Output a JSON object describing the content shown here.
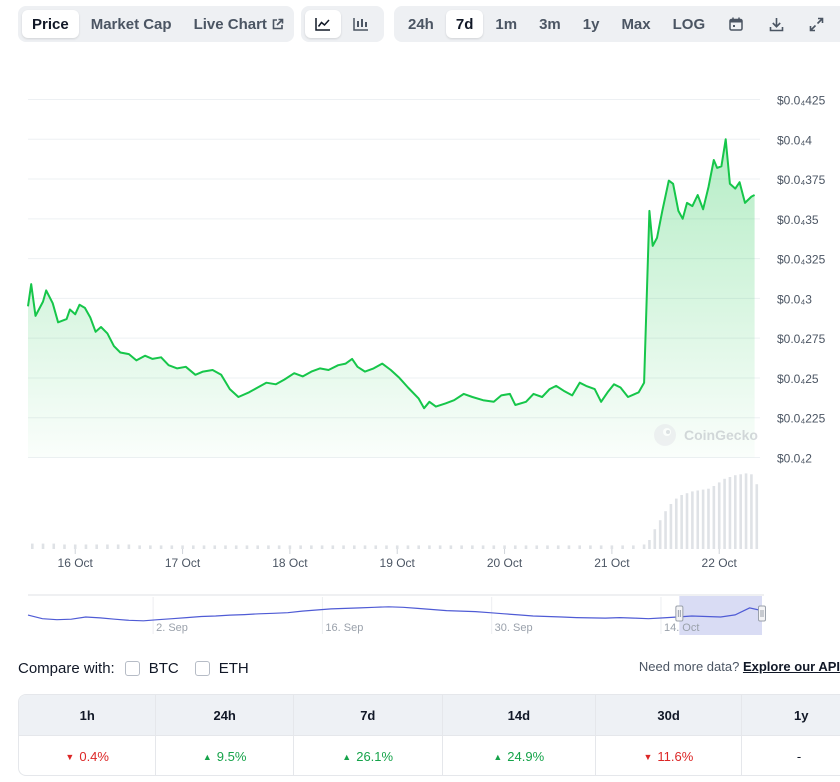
{
  "toolbar": {
    "tabs": [
      "Price",
      "Market Cap",
      "Live Chart"
    ],
    "active_tab": "Price",
    "chart_types": [
      "line-chart-icon",
      "candlestick-icon"
    ],
    "ranges": [
      "24h",
      "7d",
      "1m",
      "3m",
      "1y",
      "Max",
      "LOG"
    ],
    "active_range": "7d",
    "tools": [
      "calendar-icon",
      "download-icon",
      "expand-icon"
    ]
  },
  "colors": {
    "line": "#16c64a",
    "fill": "#16c64a",
    "grid": "#edf0f3",
    "volume": "#dfe2e6",
    "navigator_line": "#4f5bd5",
    "navigator_selection": "#c9cdf0"
  },
  "watermark": "CoinGecko",
  "chart_data": {
    "type": "area",
    "y_axis_labels": [
      "$0.0₄425",
      "$0.0₄4",
      "$0.0₄375",
      "$0.0₄35",
      "$0.0₄325",
      "$0.0₄3",
      "$0.0₄275",
      "$0.0₄25",
      "$0.0₄225",
      "$0.0₄2"
    ],
    "ylim": [
      2e-05,
      4.25e-05
    ],
    "x_tick_labels": [
      "16 Oct",
      "17 Oct",
      "18 Oct",
      "19 Oct",
      "20 Oct",
      "21 Oct",
      "22 Oct"
    ],
    "xlim": [
      15.56,
      22.38
    ],
    "grid": true,
    "price": [
      [
        15.56,
        2.95e-05
      ],
      [
        15.59,
        3.09e-05
      ],
      [
        15.63,
        2.89e-05
      ],
      [
        15.7,
        2.98e-05
      ],
      [
        15.73,
        3.05e-05
      ],
      [
        15.79,
        2.97e-05
      ],
      [
        15.84,
        2.85e-05
      ],
      [
        15.92,
        2.87e-05
      ],
      [
        15.95,
        2.93e-05
      ],
      [
        16.0,
        2.9e-05
      ],
      [
        16.04,
        2.96e-05
      ],
      [
        16.09,
        2.94e-05
      ],
      [
        16.14,
        2.88e-05
      ],
      [
        16.19,
        2.79e-05
      ],
      [
        16.24,
        2.82e-05
      ],
      [
        16.3,
        2.78e-05
      ],
      [
        16.36,
        2.7e-05
      ],
      [
        16.42,
        2.66e-05
      ],
      [
        16.5,
        2.65e-05
      ],
      [
        16.57,
        2.61e-05
      ],
      [
        16.65,
        2.64e-05
      ],
      [
        16.72,
        2.62e-05
      ],
      [
        16.8,
        2.63e-05
      ],
      [
        16.87,
        2.58e-05
      ],
      [
        16.95,
        2.56e-05
      ],
      [
        17.03,
        2.57e-05
      ],
      [
        17.12,
        2.52e-05
      ],
      [
        17.19,
        2.54e-05
      ],
      [
        17.28,
        2.55e-05
      ],
      [
        17.36,
        2.52e-05
      ],
      [
        17.44,
        2.43e-05
      ],
      [
        17.52,
        2.38e-05
      ],
      [
        17.62,
        2.41e-05
      ],
      [
        17.7,
        2.44e-05
      ],
      [
        17.78,
        2.47e-05
      ],
      [
        17.87,
        2.46e-05
      ],
      [
        17.95,
        2.49e-05
      ],
      [
        18.04,
        2.53e-05
      ],
      [
        18.12,
        2.51e-05
      ],
      [
        18.2,
        2.54e-05
      ],
      [
        18.28,
        2.56e-05
      ],
      [
        18.36,
        2.55e-05
      ],
      [
        18.45,
        2.58e-05
      ],
      [
        18.52,
        2.59e-05
      ],
      [
        18.58,
        2.62e-05
      ],
      [
        18.63,
        2.57e-05
      ],
      [
        18.7,
        2.54e-05
      ],
      [
        18.78,
        2.56e-05
      ],
      [
        18.86,
        2.59e-05
      ],
      [
        18.94,
        2.55e-05
      ],
      [
        19.02,
        2.5e-05
      ],
      [
        19.1,
        2.44e-05
      ],
      [
        19.2,
        2.37e-05
      ],
      [
        19.25,
        2.31e-05
      ],
      [
        19.3,
        2.35e-05
      ],
      [
        19.36,
        2.32e-05
      ],
      [
        19.45,
        2.34e-05
      ],
      [
        19.53,
        2.36e-05
      ],
      [
        19.62,
        2.4e-05
      ],
      [
        19.7,
        2.38e-05
      ],
      [
        19.8,
        2.36e-05
      ],
      [
        19.9,
        2.35e-05
      ],
      [
        19.97,
        2.39e-05
      ],
      [
        20.05,
        2.4e-05
      ],
      [
        20.1,
        2.33e-05
      ],
      [
        20.2,
        2.35e-05
      ],
      [
        20.27,
        2.4e-05
      ],
      [
        20.35,
        2.38e-05
      ],
      [
        20.42,
        2.43e-05
      ],
      [
        20.48,
        2.45e-05
      ],
      [
        20.55,
        2.42e-05
      ],
      [
        20.63,
        2.39e-05
      ],
      [
        20.7,
        2.47e-05
      ],
      [
        20.76,
        2.45e-05
      ],
      [
        20.84,
        2.43e-05
      ],
      [
        20.9,
        2.35e-05
      ],
      [
        20.96,
        2.41e-05
      ],
      [
        21.02,
        2.46e-05
      ],
      [
        21.08,
        2.44e-05
      ],
      [
        21.15,
        2.38e-05
      ],
      [
        21.25,
        2.41e-05
      ],
      [
        21.3,
        2.47e-05
      ],
      [
        21.35,
        3.55e-05
      ],
      [
        21.38,
        3.33e-05
      ],
      [
        21.42,
        3.38e-05
      ],
      [
        21.47,
        3.55e-05
      ],
      [
        21.53,
        3.74e-05
      ],
      [
        21.57,
        3.72e-05
      ],
      [
        21.62,
        3.55e-05
      ],
      [
        21.66,
        3.5e-05
      ],
      [
        21.7,
        3.6e-05
      ],
      [
        21.75,
        3.58e-05
      ],
      [
        21.8,
        3.65e-05
      ],
      [
        21.85,
        3.56e-05
      ],
      [
        21.9,
        3.7e-05
      ],
      [
        21.95,
        3.87e-05
      ],
      [
        21.98,
        3.82e-05
      ],
      [
        22.02,
        3.83e-05
      ],
      [
        22.06,
        4e-05
      ],
      [
        22.1,
        3.72e-05
      ],
      [
        22.15,
        3.69e-05
      ],
      [
        22.19,
        3.73e-05
      ],
      [
        22.24,
        3.6e-05
      ],
      [
        22.3,
        3.64e-05
      ],
      [
        22.33,
        3.65e-05
      ]
    ],
    "volume": [
      [
        15.6,
        0.06
      ],
      [
        15.7,
        0.06
      ],
      [
        15.8,
        0.06
      ],
      [
        15.9,
        0.05
      ],
      [
        16.0,
        0.05
      ],
      [
        16.1,
        0.05
      ],
      [
        16.2,
        0.05
      ],
      [
        16.3,
        0.05
      ],
      [
        16.4,
        0.05
      ],
      [
        16.5,
        0.05
      ],
      [
        16.6,
        0.04
      ],
      [
        16.7,
        0.04
      ],
      [
        16.8,
        0.04
      ],
      [
        16.9,
        0.04
      ],
      [
        17.0,
        0.04
      ],
      [
        17.1,
        0.04
      ],
      [
        17.2,
        0.04
      ],
      [
        17.3,
        0.04
      ],
      [
        17.4,
        0.04
      ],
      [
        17.5,
        0.04
      ],
      [
        17.6,
        0.04
      ],
      [
        17.7,
        0.04
      ],
      [
        17.8,
        0.04
      ],
      [
        17.9,
        0.04
      ],
      [
        18.0,
        0.04
      ],
      [
        18.1,
        0.04
      ],
      [
        18.2,
        0.04
      ],
      [
        18.3,
        0.04
      ],
      [
        18.4,
        0.04
      ],
      [
        18.5,
        0.04
      ],
      [
        18.6,
        0.04
      ],
      [
        18.7,
        0.04
      ],
      [
        18.8,
        0.04
      ],
      [
        18.9,
        0.04
      ],
      [
        19.0,
        0.04
      ],
      [
        19.1,
        0.04
      ],
      [
        19.2,
        0.04
      ],
      [
        19.3,
        0.04
      ],
      [
        19.4,
        0.04
      ],
      [
        19.5,
        0.04
      ],
      [
        19.6,
        0.04
      ],
      [
        19.7,
        0.04
      ],
      [
        19.8,
        0.04
      ],
      [
        19.9,
        0.04
      ],
      [
        20.0,
        0.04
      ],
      [
        20.1,
        0.04
      ],
      [
        20.2,
        0.04
      ],
      [
        20.3,
        0.04
      ],
      [
        20.4,
        0.04
      ],
      [
        20.5,
        0.04
      ],
      [
        20.6,
        0.04
      ],
      [
        20.7,
        0.04
      ],
      [
        20.8,
        0.04
      ],
      [
        20.9,
        0.04
      ],
      [
        21.0,
        0.04
      ],
      [
        21.1,
        0.04
      ],
      [
        21.2,
        0.04
      ],
      [
        21.3,
        0.05
      ],
      [
        21.35,
        0.1
      ],
      [
        21.4,
        0.22
      ],
      [
        21.45,
        0.32
      ],
      [
        21.5,
        0.42
      ],
      [
        21.55,
        0.5
      ],
      [
        21.6,
        0.56
      ],
      [
        21.65,
        0.6
      ],
      [
        21.7,
        0.62
      ],
      [
        21.75,
        0.64
      ],
      [
        21.8,
        0.65
      ],
      [
        21.85,
        0.66
      ],
      [
        21.9,
        0.67
      ],
      [
        21.95,
        0.7
      ],
      [
        22.0,
        0.74
      ],
      [
        22.05,
        0.78
      ],
      [
        22.1,
        0.8
      ],
      [
        22.15,
        0.82
      ],
      [
        22.2,
        0.83
      ],
      [
        22.25,
        0.84
      ],
      [
        22.3,
        0.83
      ],
      [
        22.35,
        0.72
      ]
    ]
  },
  "navigator": {
    "labels": [
      "2. Sep",
      "16. Sep",
      "30. Sep",
      "14. Oct"
    ],
    "series": [
      0.55,
      0.42,
      0.38,
      0.4,
      0.48,
      0.45,
      0.4,
      0.36,
      0.34,
      0.38,
      0.42,
      0.46,
      0.5,
      0.52,
      0.55,
      0.57,
      0.6,
      0.62,
      0.64,
      0.7,
      0.74,
      0.78,
      0.8,
      0.82,
      0.84,
      0.86,
      0.84,
      0.8,
      0.76,
      0.72,
      0.7,
      0.68,
      0.64,
      0.6,
      0.56,
      0.52,
      0.5,
      0.48,
      0.46,
      0.45,
      0.44,
      0.46,
      0.44,
      0.42,
      0.45,
      0.48,
      0.52,
      0.5,
      0.48,
      0.56,
      0.82,
      0.7
    ],
    "selection_start": 0.885
  },
  "compare": {
    "label": "Compare with:",
    "options": [
      "BTC",
      "ETH"
    ],
    "api_text": "Need more data?",
    "api_link": "Explore our API"
  },
  "performance": {
    "headers": [
      "1h",
      "24h",
      "7d",
      "14d",
      "30d",
      "1y"
    ],
    "values": [
      {
        "text": "0.4%",
        "dir": "down"
      },
      {
        "text": "9.5%",
        "dir": "up"
      },
      {
        "text": "26.1%",
        "dir": "up"
      },
      {
        "text": "24.9%",
        "dir": "up"
      },
      {
        "text": "11.6%",
        "dir": "down"
      },
      {
        "text": "-",
        "dir": "none"
      }
    ]
  }
}
